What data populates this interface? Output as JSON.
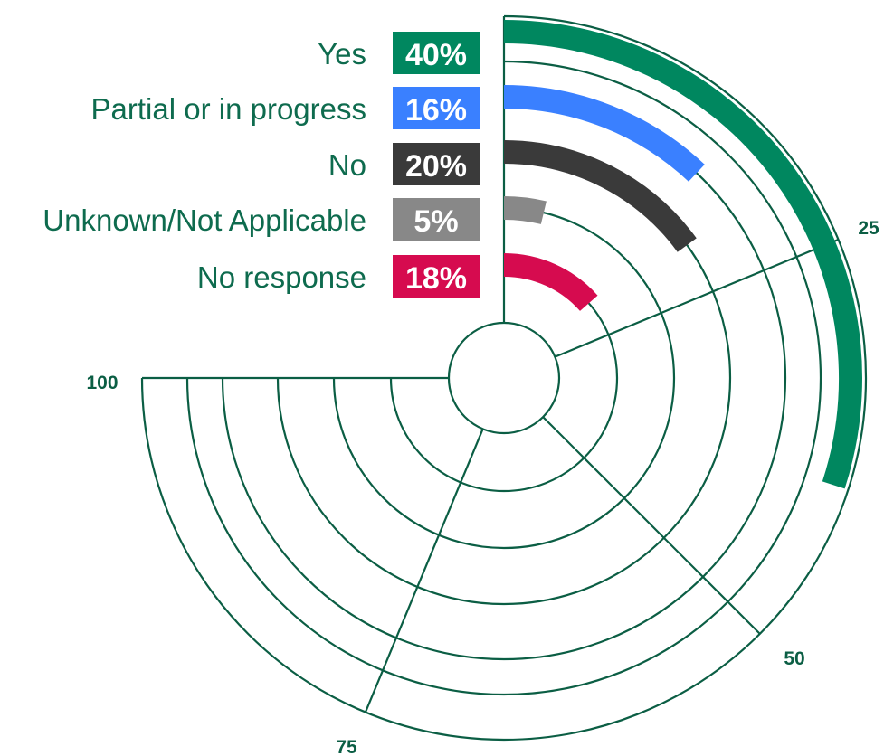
{
  "chart_data": {
    "type": "radial_bar",
    "title": "",
    "scale_max": 100,
    "categories": [
      "Yes",
      "Partial or in progress",
      "No",
      "Unknown/Not Applicable",
      "No response"
    ],
    "values": [
      40,
      16,
      20,
      5,
      18
    ],
    "value_labels": [
      "40%",
      "16%",
      "20%",
      "5%",
      "18%"
    ],
    "colors": [
      "#00875f",
      "#3a80ff",
      "#3a3a3a",
      "#888888",
      "#d60b4f"
    ],
    "axis_ticks": [
      {
        "value": 25,
        "label": "25"
      },
      {
        "value": 50,
        "label": "50"
      },
      {
        "value": 75,
        "label": "75"
      },
      {
        "value": 100,
        "label": "100"
      }
    ],
    "grid": true,
    "grid_color": "#0b5e44",
    "legend": "left"
  }
}
